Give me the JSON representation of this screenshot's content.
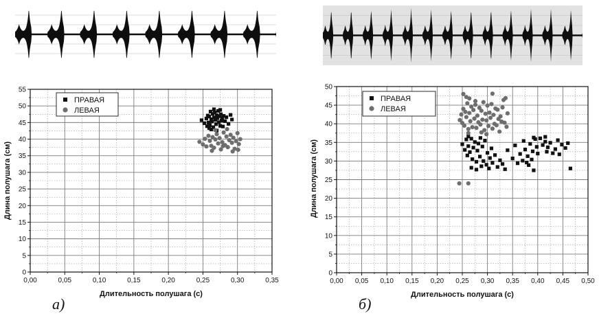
{
  "waveforms": [
    {
      "background": "#ffffff",
      "bursts": 8
    },
    {
      "background": "#e2e2e2",
      "bursts": 13
    }
  ],
  "chart_data": [
    {
      "type": "scatter",
      "panel_label": "а)",
      "xlabel": "Длительность полушага (с)",
      "ylabel": "Длина полушага (см)",
      "xlim": [
        0,
        0.35
      ],
      "ylim": [
        0,
        55
      ],
      "xticks": [
        "0,00",
        "0,05",
        "0,10",
        "0,15",
        "0,20",
        "0,25",
        "0,30",
        "0,35"
      ],
      "yticks": [
        "0",
        "5",
        "10",
        "15",
        "20",
        "25",
        "30",
        "35",
        "40",
        "45",
        "50",
        "55"
      ],
      "grid": true,
      "legend": "top-left",
      "series": [
        {
          "name": "ПРАВАЯ",
          "marker": "square",
          "color": "#111111",
          "points": [
            [
              0.248,
              45.7
            ],
            [
              0.252,
              44.8
            ],
            [
              0.255,
              46.2
            ],
            [
              0.256,
              43.9
            ],
            [
              0.257,
              47.1
            ],
            [
              0.258,
              45.0
            ],
            [
              0.259,
              46.8
            ],
            [
              0.26,
              44.2
            ],
            [
              0.261,
              48.3
            ],
            [
              0.262,
              46.0
            ],
            [
              0.263,
              45.3
            ],
            [
              0.264,
              47.6
            ],
            [
              0.265,
              43.6
            ],
            [
              0.266,
              46.5
            ],
            [
              0.267,
              48.0
            ],
            [
              0.268,
              45.8
            ],
            [
              0.269,
              44.5
            ],
            [
              0.27,
              47.2
            ],
            [
              0.271,
              46.3
            ],
            [
              0.272,
              48.5
            ],
            [
              0.273,
              45.1
            ],
            [
              0.274,
              46.9
            ],
            [
              0.275,
              44.0
            ],
            [
              0.276,
              47.5
            ],
            [
              0.277,
              45.6
            ],
            [
              0.278,
              46.4
            ],
            [
              0.279,
              43.8
            ],
            [
              0.28,
              47.0
            ],
            [
              0.282,
              45.4
            ],
            [
              0.284,
              46.6
            ],
            [
              0.287,
              44.6
            ],
            [
              0.29,
              47.3
            ],
            [
              0.292,
              45.9
            ],
            [
              0.262,
              42.9
            ],
            [
              0.27,
              42.6
            ],
            [
              0.266,
              49.0
            ],
            [
              0.259,
              43.3
            ],
            [
              0.275,
              48.8
            ]
          ]
        },
        {
          "name": "ЛЕВАЯ",
          "marker": "circle",
          "color": "#6e6e6e",
          "points": [
            [
              0.245,
              39.2
            ],
            [
              0.25,
              38.4
            ],
            [
              0.253,
              40.1
            ],
            [
              0.255,
              37.8
            ],
            [
              0.258,
              41.0
            ],
            [
              0.26,
              39.5
            ],
            [
              0.262,
              38.0
            ],
            [
              0.264,
              40.6
            ],
            [
              0.266,
              37.4
            ],
            [
              0.268,
              39.9
            ],
            [
              0.27,
              41.5
            ],
            [
              0.272,
              38.7
            ],
            [
              0.274,
              40.3
            ],
            [
              0.276,
              36.9
            ],
            [
              0.278,
              39.1
            ],
            [
              0.28,
              42.0
            ],
            [
              0.282,
              38.2
            ],
            [
              0.284,
              40.8
            ],
            [
              0.286,
              37.6
            ],
            [
              0.288,
              39.7
            ],
            [
              0.29,
              41.3
            ],
            [
              0.292,
              38.9
            ],
            [
              0.294,
              40.4
            ],
            [
              0.296,
              37.1
            ],
            [
              0.298,
              39.4
            ],
            [
              0.3,
              41.8
            ],
            [
              0.302,
              38.5
            ],
            [
              0.304,
              40.0
            ],
            [
              0.301,
              36.8
            ],
            [
              0.268,
              42.7
            ],
            [
              0.285,
              43.0
            ],
            [
              0.263,
              36.5
            ],
            [
              0.293,
              36.3
            ],
            [
              0.279,
              37.9
            ]
          ]
        }
      ]
    },
    {
      "type": "scatter",
      "panel_label": "б)",
      "xlabel": "Длительность полушага (с)",
      "ylabel": "Длина полушага (см)",
      "xlim": [
        0,
        0.5
      ],
      "ylim": [
        0,
        50
      ],
      "xticks": [
        "0,00",
        "0,05",
        "0,10",
        "0,15",
        "0,20",
        "0,25",
        "0,30",
        "0,35",
        "0,40",
        "0,45",
        "0,50"
      ],
      "yticks": [
        "0",
        "5",
        "10",
        "15",
        "20",
        "25",
        "30",
        "35",
        "40",
        "45",
        "50"
      ],
      "grid": true,
      "legend": "top-left",
      "series": [
        {
          "name": "ПРАВАЯ",
          "marker": "square",
          "color": "#111111",
          "points": [
            [
              0.25,
              34.5
            ],
            [
              0.255,
              33.0
            ],
            [
              0.258,
              35.8
            ],
            [
              0.26,
              31.5
            ],
            [
              0.262,
              34.0
            ],
            [
              0.265,
              32.4
            ],
            [
              0.268,
              36.0
            ],
            [
              0.27,
              30.5
            ],
            [
              0.272,
              33.6
            ],
            [
              0.275,
              35.1
            ],
            [
              0.278,
              29.8
            ],
            [
              0.28,
              32.8
            ],
            [
              0.282,
              34.7
            ],
            [
              0.285,
              31.2
            ],
            [
              0.288,
              28.6
            ],
            [
              0.29,
              33.9
            ],
            [
              0.292,
              30.0
            ],
            [
              0.295,
              35.5
            ],
            [
              0.298,
              29.0
            ],
            [
              0.3,
              32.2
            ],
            [
              0.303,
              28.0
            ],
            [
              0.305,
              30.8
            ],
            [
              0.308,
              33.4
            ],
            [
              0.31,
              29.5
            ],
            [
              0.315,
              31.6
            ],
            [
              0.32,
              28.4
            ],
            [
              0.325,
              30.2
            ],
            [
              0.33,
              29.2
            ],
            [
              0.335,
              27.8
            ],
            [
              0.34,
              32.9
            ],
            [
              0.268,
              28.2
            ],
            [
              0.278,
              27.7
            ],
            [
              0.262,
              36.6
            ],
            [
              0.286,
              36.2
            ],
            [
              0.35,
              30.7
            ],
            [
              0.355,
              34.2
            ],
            [
              0.36,
              29.4
            ],
            [
              0.365,
              31.9
            ],
            [
              0.37,
              30.1
            ],
            [
              0.372,
              35.4
            ],
            [
              0.375,
              33.1
            ],
            [
              0.378,
              29.6
            ],
            [
              0.38,
              31.3
            ],
            [
              0.382,
              28.9
            ],
            [
              0.385,
              34.6
            ],
            [
              0.388,
              30.4
            ],
            [
              0.39,
              32.6
            ],
            [
              0.392,
              27.5
            ],
            [
              0.395,
              35.9
            ],
            [
              0.398,
              33.8
            ],
            [
              0.4,
              32.0
            ],
            [
              0.405,
              36.1
            ],
            [
              0.41,
              34.3
            ],
            [
              0.415,
              35.2
            ],
            [
              0.418,
              32.5
            ],
            [
              0.42,
              33.7
            ],
            [
              0.425,
              34.9
            ],
            [
              0.43,
              32.1
            ],
            [
              0.435,
              33.2
            ],
            [
              0.44,
              35.6
            ],
            [
              0.443,
              31.8
            ],
            [
              0.448,
              34.4
            ],
            [
              0.455,
              33.5
            ],
            [
              0.46,
              34.8
            ],
            [
              0.465,
              28.0
            ],
            [
              0.392,
              36.3
            ],
            [
              0.415,
              36.5
            ]
          ]
        },
        {
          "name": "ЛЕВАЯ",
          "marker": "circle",
          "color": "#6e6e6e",
          "points": [
            [
              0.245,
              41.0
            ],
            [
              0.248,
              42.5
            ],
            [
              0.25,
              40.2
            ],
            [
              0.252,
              44.0
            ],
            [
              0.254,
              39.5
            ],
            [
              0.256,
              43.2
            ],
            [
              0.258,
              41.8
            ],
            [
              0.26,
              45.5
            ],
            [
              0.262,
              38.6
            ],
            [
              0.264,
              42.9
            ],
            [
              0.266,
              40.7
            ],
            [
              0.268,
              44.6
            ],
            [
              0.27,
              39.1
            ],
            [
              0.272,
              43.7
            ],
            [
              0.274,
              41.4
            ],
            [
              0.276,
              45.1
            ],
            [
              0.278,
              38.9
            ],
            [
              0.28,
              42.2
            ],
            [
              0.282,
              40.4
            ],
            [
              0.284,
              44.3
            ],
            [
              0.286,
              39.8
            ],
            [
              0.288,
              43.5
            ],
            [
              0.29,
              41.1
            ],
            [
              0.292,
              45.8
            ],
            [
              0.294,
              38.3
            ],
            [
              0.296,
              42.7
            ],
            [
              0.298,
              40.9
            ],
            [
              0.3,
              44.9
            ],
            [
              0.302,
              39.4
            ],
            [
              0.304,
              43.0
            ],
            [
              0.306,
              41.6
            ],
            [
              0.308,
              45.3
            ],
            [
              0.31,
              38.7
            ],
            [
              0.312,
              42.4
            ],
            [
              0.314,
              40.0
            ],
            [
              0.316,
              44.1
            ],
            [
              0.318,
              39.6
            ],
            [
              0.32,
              43.8
            ],
            [
              0.322,
              41.3
            ],
            [
              0.324,
              37.9
            ],
            [
              0.326,
              42.0
            ],
            [
              0.328,
              40.6
            ],
            [
              0.33,
              44.4
            ],
            [
              0.332,
              46.4
            ],
            [
              0.334,
              40.3
            ],
            [
              0.336,
              46.9
            ],
            [
              0.338,
              39.2
            ],
            [
              0.34,
              42.8
            ],
            [
              0.258,
              47.2
            ],
            [
              0.252,
              48.0
            ],
            [
              0.31,
              48.1
            ],
            [
              0.264,
              46.8
            ],
            [
              0.262,
              37.5
            ],
            [
              0.298,
              37.2
            ],
            [
              0.244,
              24.0
            ],
            [
              0.262,
              24.0
            ],
            [
              0.276,
              46.1
            ],
            [
              0.288,
              37.7
            ]
          ]
        }
      ]
    }
  ]
}
